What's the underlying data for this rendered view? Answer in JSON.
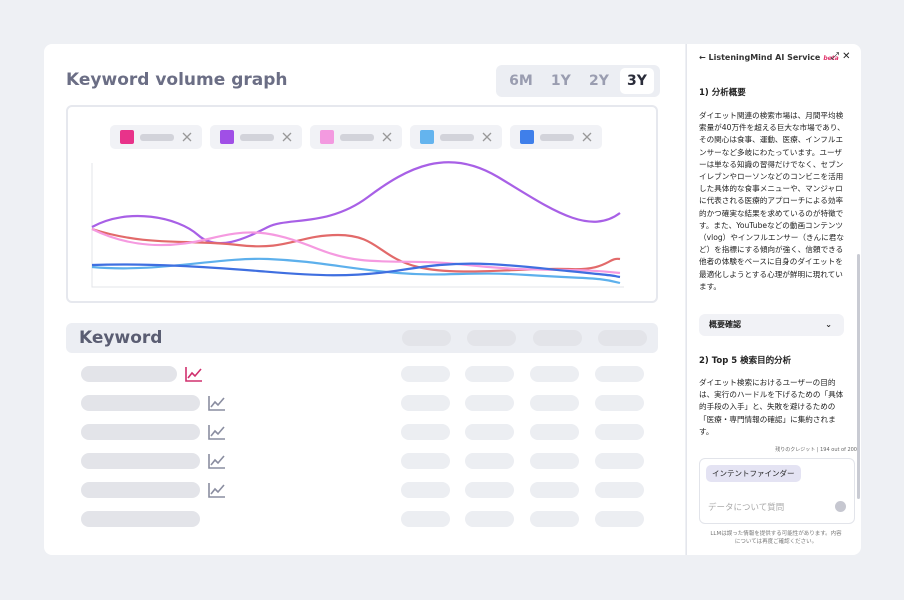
{
  "graph": {
    "title": "Keyword volume graph",
    "periods": [
      "6M",
      "1Y",
      "2Y",
      "3Y"
    ]
  },
  "table": {
    "header": "Keyword"
  },
  "panel": {
    "title": "ListeningMind AI Service",
    "badge": "beta",
    "section1_title": "1) 分析概要",
    "section1_body": "ダイエット関連の検索市場は、月間平均検索量が40万件を超える巨大な市場であり、その関心は食事、運動、医療、インフルエンサーなど多岐にわたっています。ユーザーは単なる知識の習得だけでなく、セブンイレブンやローソンなどのコンビニを活用した具体的な食事メニューや、マンジャロに代表される医療的アプローチによる効率的かつ確実な結果を求めているのが特徴です。また、YouTubeなどの動画コンテンツ（vlog）やインフルエンサー（きんに君など）を指標にする傾向が強く、信頼できる他者の体験をベースに自身のダイエットを最適化しようとする心理が鮮明に現れています。",
    "summary_button": "概要確認",
    "section2_title": "2) Top 5 検索目的分析",
    "section2_body": "ダイエット検索におけるユーザーの目的は、実行のハードルを下げるための「具体的手段の入手」と、失敗を避けるための「医療・専門情報の確認」に集約されます。",
    "credits": "残りのクレジット | 194 out of 200",
    "chip": "インテントファインダー",
    "input_placeholder": "データについて質問",
    "disclaimer": "LLMは誤った情報を提供する可能性があります。内容については再度ご確認ください。"
  }
}
